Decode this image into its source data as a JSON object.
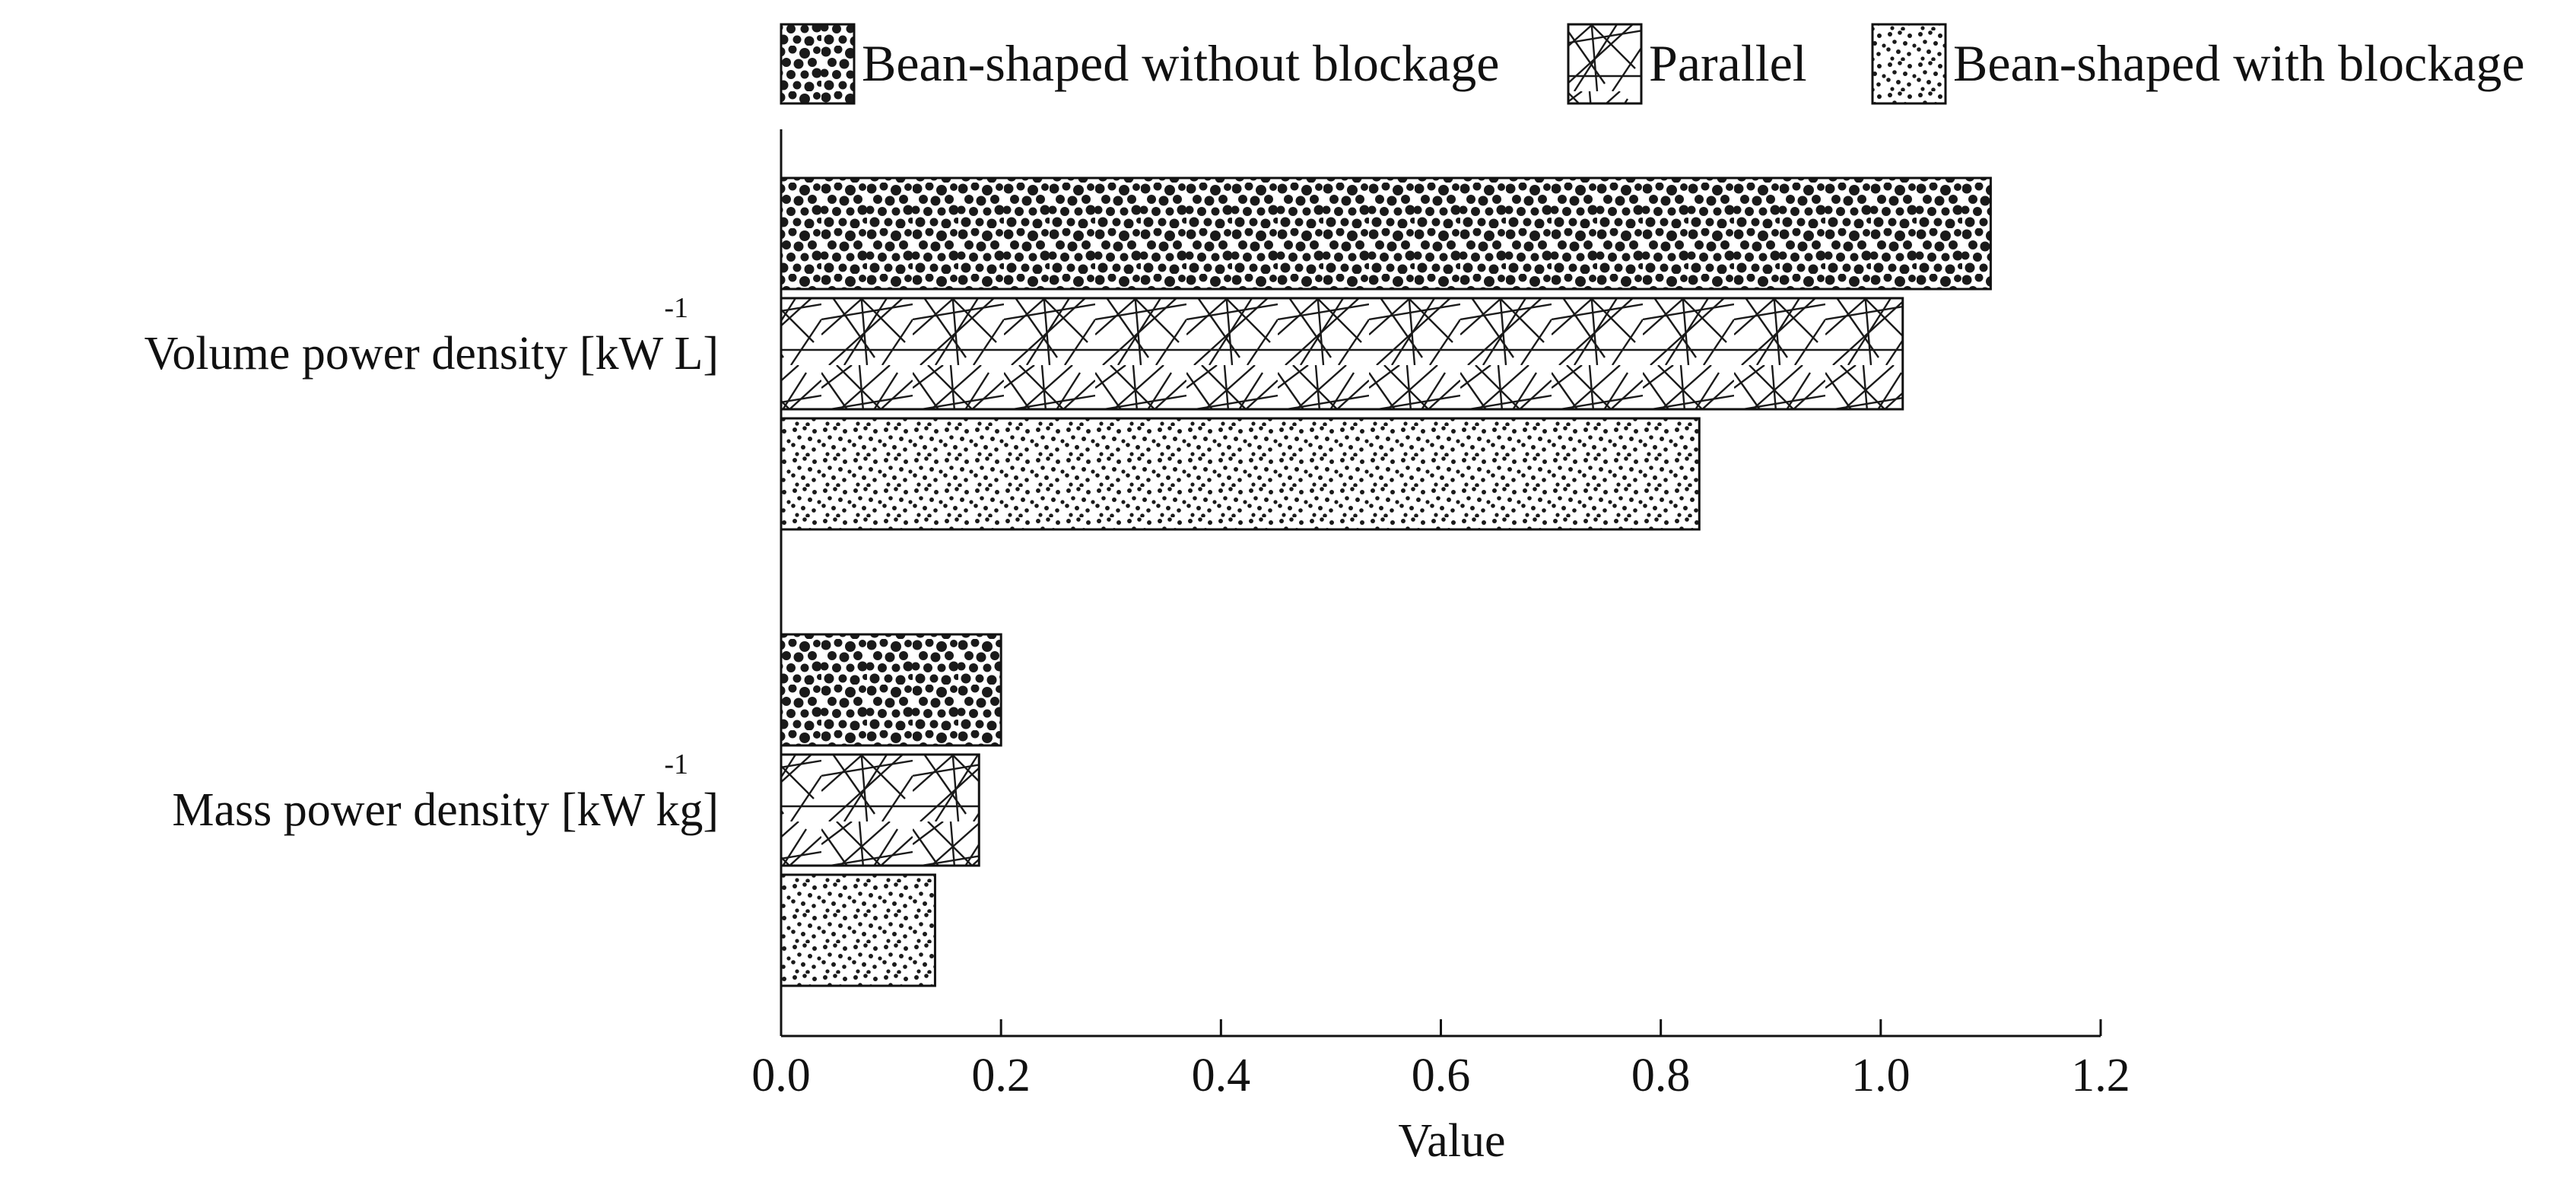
{
  "chart_data": {
    "type": "bar",
    "orientation": "horizontal",
    "categories": [
      {
        "label": "Volume power density [kW L]",
        "superscript": "-1"
      },
      {
        "label": "Mass power density [kW kg]",
        "superscript": "-1"
      }
    ],
    "series": [
      {
        "name": "Bean-shaped without blockage",
        "pattern": "blobs",
        "values": [
          1.1,
          0.2
        ]
      },
      {
        "name": "Parallel",
        "pattern": "lines",
        "values": [
          1.02,
          0.18
        ]
      },
      {
        "name": "Bean-shaped with blockage",
        "pattern": "dots",
        "values": [
          0.835,
          0.14
        ]
      }
    ],
    "xlabel": "Value",
    "ylabel": "",
    "xlim": [
      0.0,
      1.2
    ],
    "xticks": [
      "0.0",
      "0.2",
      "0.4",
      "0.6",
      "0.8",
      "1.0",
      "1.2"
    ],
    "legend_position": "top",
    "grid": false,
    "colors": {
      "ink": "#111111",
      "background": "#ffffff"
    }
  }
}
